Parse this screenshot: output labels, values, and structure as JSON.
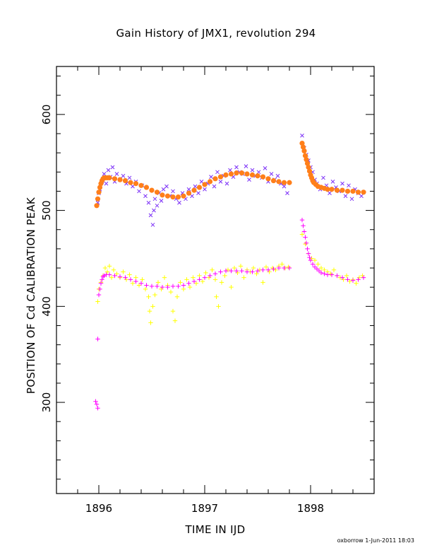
{
  "chart_data": {
    "type": "scatter",
    "title": "Gain History of JMX1, revolution 294",
    "xlabel": "TIME IN IJD",
    "ylabel": "POSITION OF Cd CALIBRATION PEAK",
    "xlim": [
      1895.6,
      1898.6
    ],
    "ylim": [
      205,
      650
    ],
    "x_ticks": [
      1896,
      1897,
      1898
    ],
    "y_ticks": [
      300,
      400,
      500,
      600
    ],
    "grid": false,
    "series": [
      {
        "marker": "x",
        "color": "#7b2ff7",
        "x": [
          1895.99,
          1896.0,
          1896.01,
          1896.03,
          1896.05,
          1896.07,
          1896.09,
          1896.11,
          1896.13,
          1896.15,
          1896.17,
          1896.2,
          1896.23,
          1896.26,
          1896.29,
          1896.32,
          1896.35,
          1896.38,
          1896.41,
          1896.44,
          1896.47,
          1896.49,
          1896.51,
          1896.52,
          1896.53,
          1896.55,
          1896.57,
          1896.59,
          1896.61,
          1896.64,
          1896.67,
          1896.7,
          1896.73,
          1896.76,
          1896.79,
          1896.82,
          1896.85,
          1896.88,
          1896.91,
          1896.94,
          1896.97,
          1897.0,
          1897.03,
          1897.06,
          1897.09,
          1897.12,
          1897.15,
          1897.18,
          1897.21,
          1897.24,
          1897.27,
          1897.3,
          1897.33,
          1897.36,
          1897.39,
          1897.42,
          1897.45,
          1897.48,
          1897.51,
          1897.54,
          1897.57,
          1897.6,
          1897.63,
          1897.66,
          1897.69,
          1897.72,
          1897.75,
          1897.78,
          1897.92,
          1897.94,
          1897.96,
          1897.98,
          1898.0,
          1898.02,
          1898.04,
          1898.06,
          1898.09,
          1898.12,
          1898.15,
          1898.18,
          1898.21,
          1898.24,
          1898.27,
          1898.3,
          1898.33,
          1898.36,
          1898.39,
          1898.42,
          1898.45,
          1898.48
        ],
        "y": [
          508,
          518,
          522,
          530,
          538,
          528,
          542,
          535,
          545,
          530,
          538,
          532,
          536,
          528,
          534,
          525,
          530,
          520,
          526,
          515,
          508,
          495,
          485,
          500,
          512,
          505,
          518,
          510,
          522,
          525,
          515,
          520,
          512,
          508,
          518,
          512,
          522,
          515,
          525,
          518,
          530,
          522,
          528,
          535,
          525,
          540,
          530,
          536,
          528,
          542,
          535,
          545,
          540,
          538,
          546,
          532,
          542,
          536,
          540,
          534,
          544,
          530,
          538,
          532,
          536,
          528,
          525,
          518,
          578,
          565,
          558,
          552,
          545,
          540,
          532,
          528,
          522,
          534,
          526,
          518,
          530,
          524,
          520,
          528,
          515,
          526,
          512,
          522,
          518,
          515
        ]
      },
      {
        "marker": "dot",
        "color": "#ff7f1a",
        "x": [
          1895.98,
          1895.99,
          1896.0,
          1896.01,
          1896.02,
          1896.03,
          1896.04,
          1896.05,
          1896.06,
          1896.08,
          1896.1,
          1896.15,
          1896.2,
          1896.25,
          1896.3,
          1896.35,
          1896.4,
          1896.45,
          1896.5,
          1896.55,
          1896.6,
          1896.65,
          1896.7,
          1896.75,
          1896.8,
          1896.85,
          1896.9,
          1896.95,
          1897.0,
          1897.05,
          1897.1,
          1897.15,
          1897.2,
          1897.25,
          1897.3,
          1897.35,
          1897.4,
          1897.45,
          1897.5,
          1897.55,
          1897.6,
          1897.65,
          1897.7,
          1897.75,
          1897.8,
          1897.92,
          1897.93,
          1897.94,
          1897.95,
          1897.96,
          1897.97,
          1897.98,
          1897.99,
          1898.0,
          1898.01,
          1898.02,
          1898.03,
          1898.05,
          1898.07,
          1898.1,
          1898.13,
          1898.16,
          1898.2,
          1898.25,
          1898.3,
          1898.35,
          1898.4,
          1898.45,
          1898.5
        ],
        "y": [
          505,
          512,
          519,
          524,
          528,
          531,
          533,
          534,
          534,
          534,
          534,
          533,
          532,
          531,
          529,
          528,
          526,
          524,
          521,
          519,
          516,
          515,
          514,
          514,
          515,
          518,
          521,
          524,
          527,
          530,
          533,
          535,
          537,
          538,
          539,
          539,
          538,
          537,
          536,
          535,
          533,
          531,
          530,
          529,
          529,
          570,
          566,
          562,
          557,
          553,
          549,
          545,
          541,
          537,
          534,
          531,
          529,
          527,
          525,
          524,
          523,
          522,
          522,
          521,
          521,
          520,
          520,
          519,
          519
        ]
      },
      {
        "marker": "plus",
        "color": "#ffff00",
        "x": [
          1895.99,
          1896.0,
          1896.02,
          1896.04,
          1896.06,
          1896.08,
          1896.1,
          1896.12,
          1896.14,
          1896.17,
          1896.2,
          1896.23,
          1896.26,
          1896.29,
          1896.32,
          1896.35,
          1896.38,
          1896.41,
          1896.44,
          1896.47,
          1896.48,
          1896.49,
          1896.51,
          1896.53,
          1896.56,
          1896.59,
          1896.62,
          1896.65,
          1896.68,
          1896.7,
          1896.72,
          1896.74,
          1896.77,
          1896.8,
          1896.83,
          1896.86,
          1896.89,
          1896.92,
          1896.95,
          1896.98,
          1897.01,
          1897.04,
          1897.07,
          1897.1,
          1897.11,
          1897.13,
          1897.16,
          1897.19,
          1897.22,
          1897.25,
          1897.28,
          1897.31,
          1897.34,
          1897.37,
          1897.4,
          1897.43,
          1897.46,
          1897.49,
          1897.52,
          1897.55,
          1897.58,
          1897.61,
          1897.64,
          1897.67,
          1897.7,
          1897.73,
          1897.76,
          1897.79,
          1897.92,
          1897.95,
          1897.98,
          1898.01,
          1898.04,
          1898.07,
          1898.1,
          1898.13,
          1898.16,
          1898.19,
          1898.22,
          1898.25,
          1898.28,
          1898.31,
          1898.34,
          1898.37,
          1898.4,
          1898.43,
          1898.46,
          1898.49
        ],
        "y": [
          405,
          418,
          425,
          432,
          440,
          436,
          442,
          430,
          438,
          434,
          430,
          436,
          428,
          433,
          424,
          430,
          422,
          428,
          418,
          410,
          395,
          383,
          400,
          412,
          425,
          418,
          430,
          422,
          415,
          395,
          385,
          410,
          425,
          418,
          428,
          420,
          430,
          424,
          432,
          426,
          435,
          430,
          438,
          428,
          410,
          400,
          425,
          432,
          438,
          420,
          440,
          435,
          442,
          430,
          438,
          436,
          440,
          434,
          438,
          425,
          441,
          436,
          440,
          438,
          442,
          444,
          440,
          441,
          475,
          465,
          455,
          450,
          448,
          444,
          440,
          438,
          436,
          434,
          438,
          432,
          430,
          428,
          432,
          426,
          428,
          424,
          430,
          432
        ]
      },
      {
        "marker": "plus",
        "color": "#ff00ff",
        "x": [
          1895.97,
          1895.98,
          1895.99,
          1895.99,
          1896.0,
          1896.01,
          1896.02,
          1896.03,
          1896.04,
          1896.05,
          1896.07,
          1896.1,
          1896.15,
          1896.2,
          1896.25,
          1896.3,
          1896.35,
          1896.4,
          1896.45,
          1896.5,
          1896.55,
          1896.6,
          1896.65,
          1896.7,
          1896.75,
          1896.8,
          1896.85,
          1896.9,
          1896.95,
          1897.0,
          1897.05,
          1897.1,
          1897.15,
          1897.2,
          1897.25,
          1897.3,
          1897.35,
          1897.4,
          1897.45,
          1897.5,
          1897.55,
          1897.6,
          1897.65,
          1897.7,
          1897.75,
          1897.8,
          1897.92,
          1897.93,
          1897.94,
          1897.95,
          1897.96,
          1897.97,
          1897.98,
          1897.99,
          1898.0,
          1898.02,
          1898.04,
          1898.06,
          1898.08,
          1898.1,
          1898.13,
          1898.16,
          1898.2,
          1898.25,
          1898.3,
          1898.35,
          1898.4,
          1898.45,
          1898.5
        ],
        "y": [
          301,
          298,
          294,
          366,
          412,
          418,
          424,
          428,
          431,
          432,
          433,
          433,
          432,
          431,
          430,
          428,
          426,
          424,
          422,
          421,
          421,
          420,
          420,
          421,
          421,
          422,
          424,
          426,
          428,
          430,
          432,
          434,
          436,
          437,
          437,
          437,
          437,
          436,
          436,
          437,
          438,
          438,
          439,
          440,
          440,
          440,
          490,
          484,
          478,
          472,
          466,
          460,
          455,
          451,
          448,
          444,
          441,
          439,
          437,
          435,
          434,
          433,
          433,
          432,
          430,
          428,
          427,
          428,
          430
        ]
      }
    ],
    "footer": "oxborrow   1-Jun-2011 18:03"
  }
}
